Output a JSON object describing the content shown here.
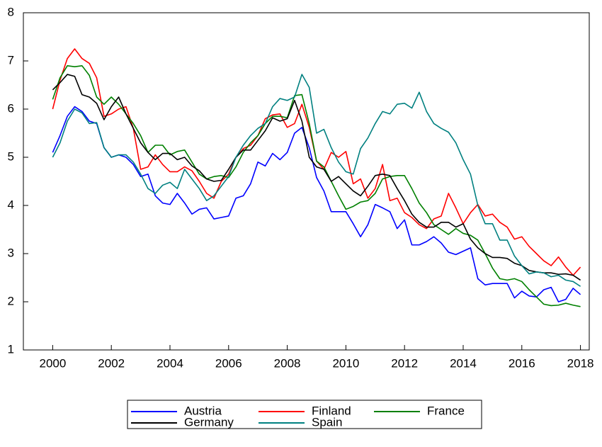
{
  "chart_data": {
    "type": "line",
    "x": [
      2000,
      2000.25,
      2000.5,
      2000.75,
      2001,
      2001.25,
      2001.5,
      2001.75,
      2002,
      2002.25,
      2002.5,
      2002.75,
      2003,
      2003.25,
      2003.5,
      2003.75,
      2004,
      2004.25,
      2004.5,
      2004.75,
      2005,
      2005.25,
      2005.5,
      2005.75,
      2006,
      2006.25,
      2006.5,
      2006.75,
      2007,
      2007.25,
      2007.5,
      2007.75,
      2008,
      2008.25,
      2008.5,
      2008.75,
      2009,
      2009.25,
      2009.5,
      2009.75,
      2010,
      2010.25,
      2010.5,
      2010.75,
      2011,
      2011.25,
      2011.5,
      2011.75,
      2012,
      2012.25,
      2012.5,
      2012.75,
      2013,
      2013.25,
      2013.5,
      2013.75,
      2014,
      2014.25,
      2014.5,
      2014.75,
      2015,
      2015.25,
      2015.5,
      2015.75,
      2016,
      2016.25,
      2016.5,
      2016.75,
      2017,
      2017.25,
      2017.5,
      2017.75,
      2018
    ],
    "series": [
      {
        "name": "Austria",
        "color": "#0000ff",
        "values": [
          5.1,
          5.45,
          5.85,
          6.05,
          5.95,
          5.75,
          5.7,
          5.2,
          5.0,
          5.05,
          5.0,
          4.85,
          4.6,
          4.65,
          4.2,
          4.05,
          4.02,
          4.25,
          4.05,
          3.82,
          3.92,
          3.95,
          3.72,
          3.75,
          3.78,
          4.15,
          4.2,
          4.45,
          4.9,
          4.82,
          5.08,
          4.95,
          5.1,
          5.5,
          5.62,
          5.2,
          4.58,
          4.3,
          3.87,
          3.87,
          3.87,
          3.62,
          3.35,
          3.6,
          4.02,
          3.95,
          3.87,
          3.52,
          3.7,
          3.18,
          3.18,
          3.25,
          3.35,
          3.22,
          3.03,
          2.98,
          3.05,
          3.12,
          2.48,
          2.35,
          2.38,
          2.38,
          2.38,
          2.08,
          2.22,
          2.12,
          2.1,
          2.25,
          2.3,
          2.0,
          2.05,
          2.28,
          2.15
        ]
      },
      {
        "name": "Finland",
        "color": "#ff0000",
        "values": [
          6.0,
          6.6,
          7.05,
          7.25,
          7.05,
          6.95,
          6.65,
          5.85,
          5.9,
          6.0,
          6.05,
          5.6,
          4.75,
          4.8,
          5.05,
          4.85,
          4.7,
          4.7,
          4.8,
          4.72,
          4.5,
          4.25,
          4.15,
          4.5,
          4.65,
          5.0,
          5.18,
          5.25,
          5.45,
          5.8,
          5.88,
          5.9,
          5.62,
          5.7,
          6.1,
          5.62,
          4.92,
          4.75,
          5.1,
          5.0,
          5.12,
          4.45,
          4.55,
          4.15,
          4.35,
          4.85,
          4.1,
          4.15,
          3.85,
          3.75,
          3.6,
          3.52,
          3.72,
          3.78,
          4.25,
          3.95,
          3.62,
          3.85,
          4.02,
          3.78,
          3.82,
          3.65,
          3.55,
          3.3,
          3.35,
          3.15,
          3.0,
          2.85,
          2.75,
          2.93,
          2.72,
          2.55,
          2.72
        ]
      },
      {
        "name": "France",
        "color": "#008000",
        "values": [
          6.2,
          6.65,
          6.9,
          6.88,
          6.9,
          6.7,
          6.25,
          6.1,
          6.25,
          6.1,
          5.9,
          5.7,
          5.45,
          5.1,
          5.25,
          5.25,
          5.05,
          5.12,
          5.15,
          4.9,
          4.65,
          4.55,
          4.6,
          4.62,
          4.58,
          4.8,
          5.1,
          5.3,
          5.45,
          5.7,
          5.85,
          5.85,
          5.82,
          6.28,
          6.3,
          5.7,
          4.92,
          4.8,
          4.5,
          4.2,
          3.92,
          3.98,
          4.07,
          4.1,
          4.25,
          4.55,
          4.6,
          4.62,
          4.62,
          4.35,
          4.05,
          3.85,
          3.6,
          3.5,
          3.4,
          3.52,
          3.42,
          3.38,
          3.28,
          3.0,
          2.7,
          2.48,
          2.45,
          2.48,
          2.42,
          2.25,
          2.1,
          1.95,
          1.92,
          1.93,
          1.97,
          1.93,
          1.9
        ]
      },
      {
        "name": "Germany",
        "color": "#000000",
        "values": [
          6.4,
          6.55,
          6.72,
          6.68,
          6.3,
          6.25,
          6.12,
          5.78,
          6.05,
          6.25,
          5.9,
          5.6,
          5.3,
          5.1,
          4.95,
          5.08,
          5.08,
          4.95,
          5.0,
          4.82,
          4.72,
          4.55,
          4.5,
          4.52,
          4.75,
          5.0,
          5.15,
          5.15,
          5.35,
          5.55,
          5.82,
          5.75,
          5.8,
          6.18,
          5.75,
          5.0,
          4.8,
          4.75,
          4.5,
          4.6,
          4.45,
          4.3,
          4.2,
          4.4,
          4.62,
          4.65,
          4.62,
          4.35,
          4.1,
          3.82,
          3.65,
          3.55,
          3.55,
          3.65,
          3.65,
          3.55,
          3.62,
          3.3,
          3.12,
          3.0,
          2.92,
          2.92,
          2.9,
          2.8,
          2.75,
          2.65,
          2.62,
          2.6,
          2.6,
          2.57,
          2.58,
          2.55,
          2.45
        ]
      },
      {
        "name": "Spain",
        "color": "#008080",
        "values": [
          5.0,
          5.3,
          5.75,
          6.0,
          5.92,
          5.7,
          5.72,
          5.2,
          5.0,
          5.05,
          5.05,
          4.9,
          4.65,
          4.35,
          4.25,
          4.42,
          4.48,
          4.35,
          4.75,
          4.55,
          4.35,
          4.1,
          4.2,
          4.4,
          4.6,
          5.0,
          5.25,
          5.45,
          5.6,
          5.7,
          6.05,
          6.22,
          6.18,
          6.25,
          6.72,
          6.45,
          5.5,
          5.58,
          5.2,
          4.9,
          4.7,
          4.65,
          5.18,
          5.4,
          5.7,
          5.95,
          5.9,
          6.1,
          6.12,
          6.02,
          6.35,
          5.95,
          5.7,
          5.6,
          5.52,
          5.3,
          4.95,
          4.65,
          4.0,
          3.62,
          3.62,
          3.28,
          3.28,
          2.95,
          2.75,
          2.58,
          2.62,
          2.6,
          2.52,
          2.55,
          2.45,
          2.42,
          2.32
        ]
      }
    ],
    "xlim": [
      1999,
      2018.3
    ],
    "ylim": [
      1,
      8
    ],
    "xticks": [
      2000,
      2002,
      2004,
      2006,
      2008,
      2010,
      2012,
      2014,
      2016,
      2018
    ],
    "yticks": [
      1,
      2,
      3,
      4,
      5,
      6,
      7,
      8
    ]
  }
}
